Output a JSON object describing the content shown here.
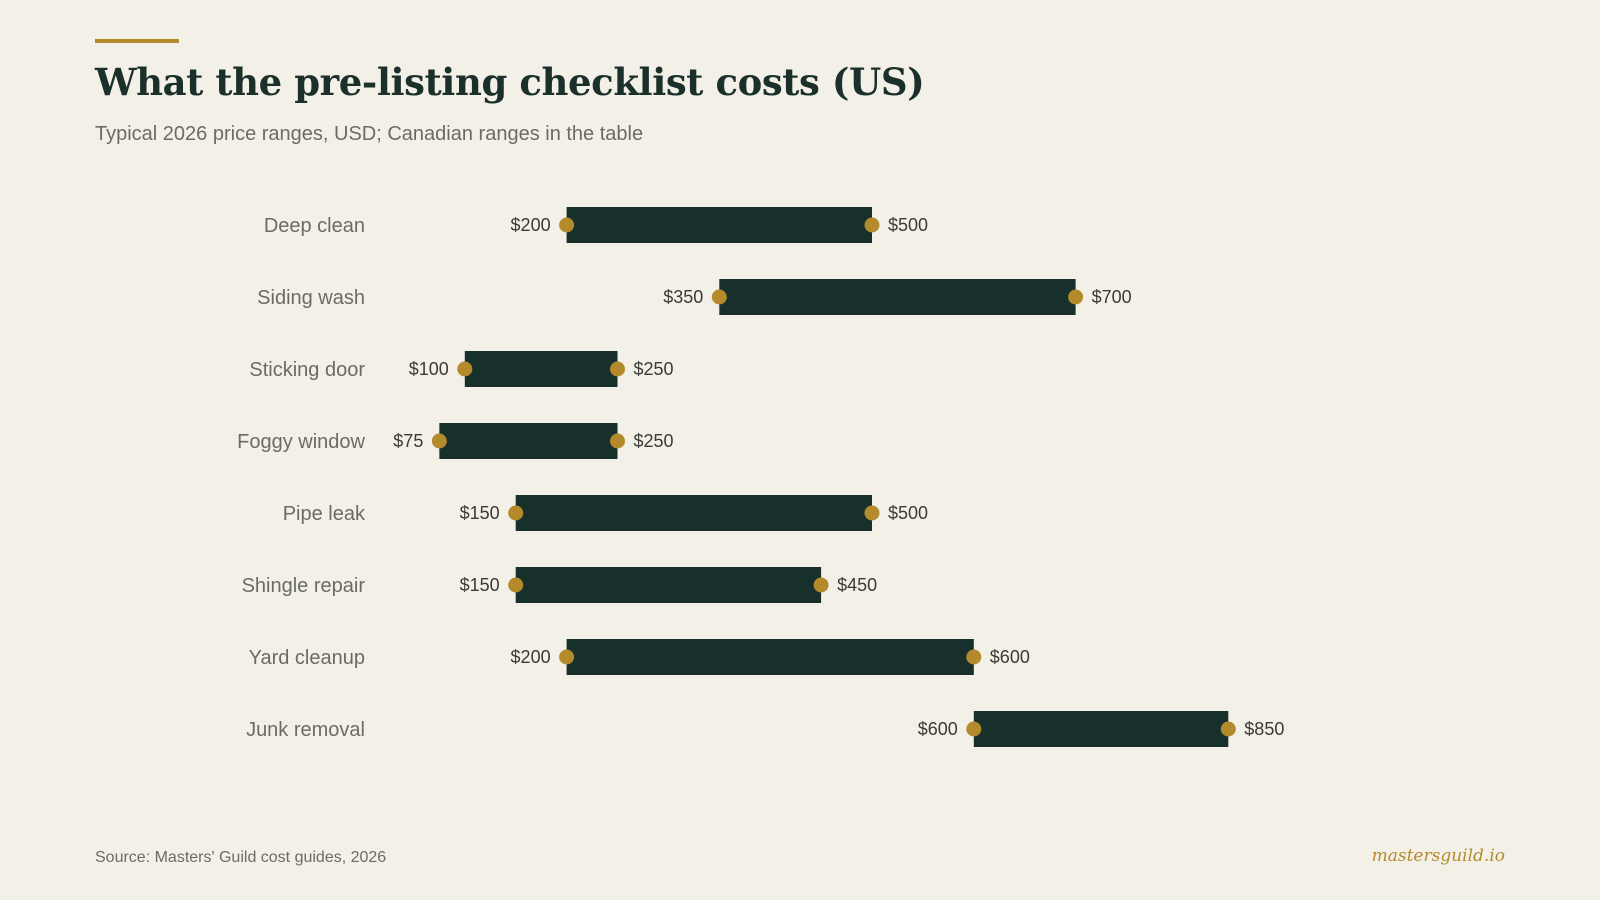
{
  "header": {
    "title": "What the pre-listing checklist costs (US)",
    "subtitle": "Typical 2026 price ranges, USD; Canadian ranges in the table"
  },
  "footer": {
    "source": "Source: Masters' Guild cost guides, 2026",
    "brand": "mastersguild.io"
  },
  "colors": {
    "background": "#f3f1e7",
    "bar": "#17302b",
    "endpoint": "#b58a2c",
    "category_label": "#6b6b66",
    "value_label": "#3a3a36"
  },
  "chart_data": {
    "type": "bar",
    "orientation": "horizontal-range",
    "title": "What the pre-listing checklist costs (US)",
    "subtitle": "Typical 2026 price ranges, USD; Canadian ranges in the table",
    "xlim": [
      0,
      1000
    ],
    "grid": false,
    "categories": [
      "Deep clean",
      "Siding wash",
      "Sticking door",
      "Foggy window",
      "Pipe leak",
      "Shingle repair",
      "Yard cleanup",
      "Junk removal"
    ],
    "low": [
      200,
      350,
      100,
      75,
      150,
      150,
      200,
      600
    ],
    "high": [
      500,
      700,
      250,
      250,
      500,
      450,
      600,
      850
    ],
    "low_labels": [
      "$200",
      "$350",
      "$100",
      "$75",
      "$150",
      "$150",
      "$200",
      "$600"
    ],
    "high_labels": [
      "$500",
      "$700",
      "$250",
      "$250",
      "$500",
      "$450",
      "$600",
      "$850"
    ]
  }
}
